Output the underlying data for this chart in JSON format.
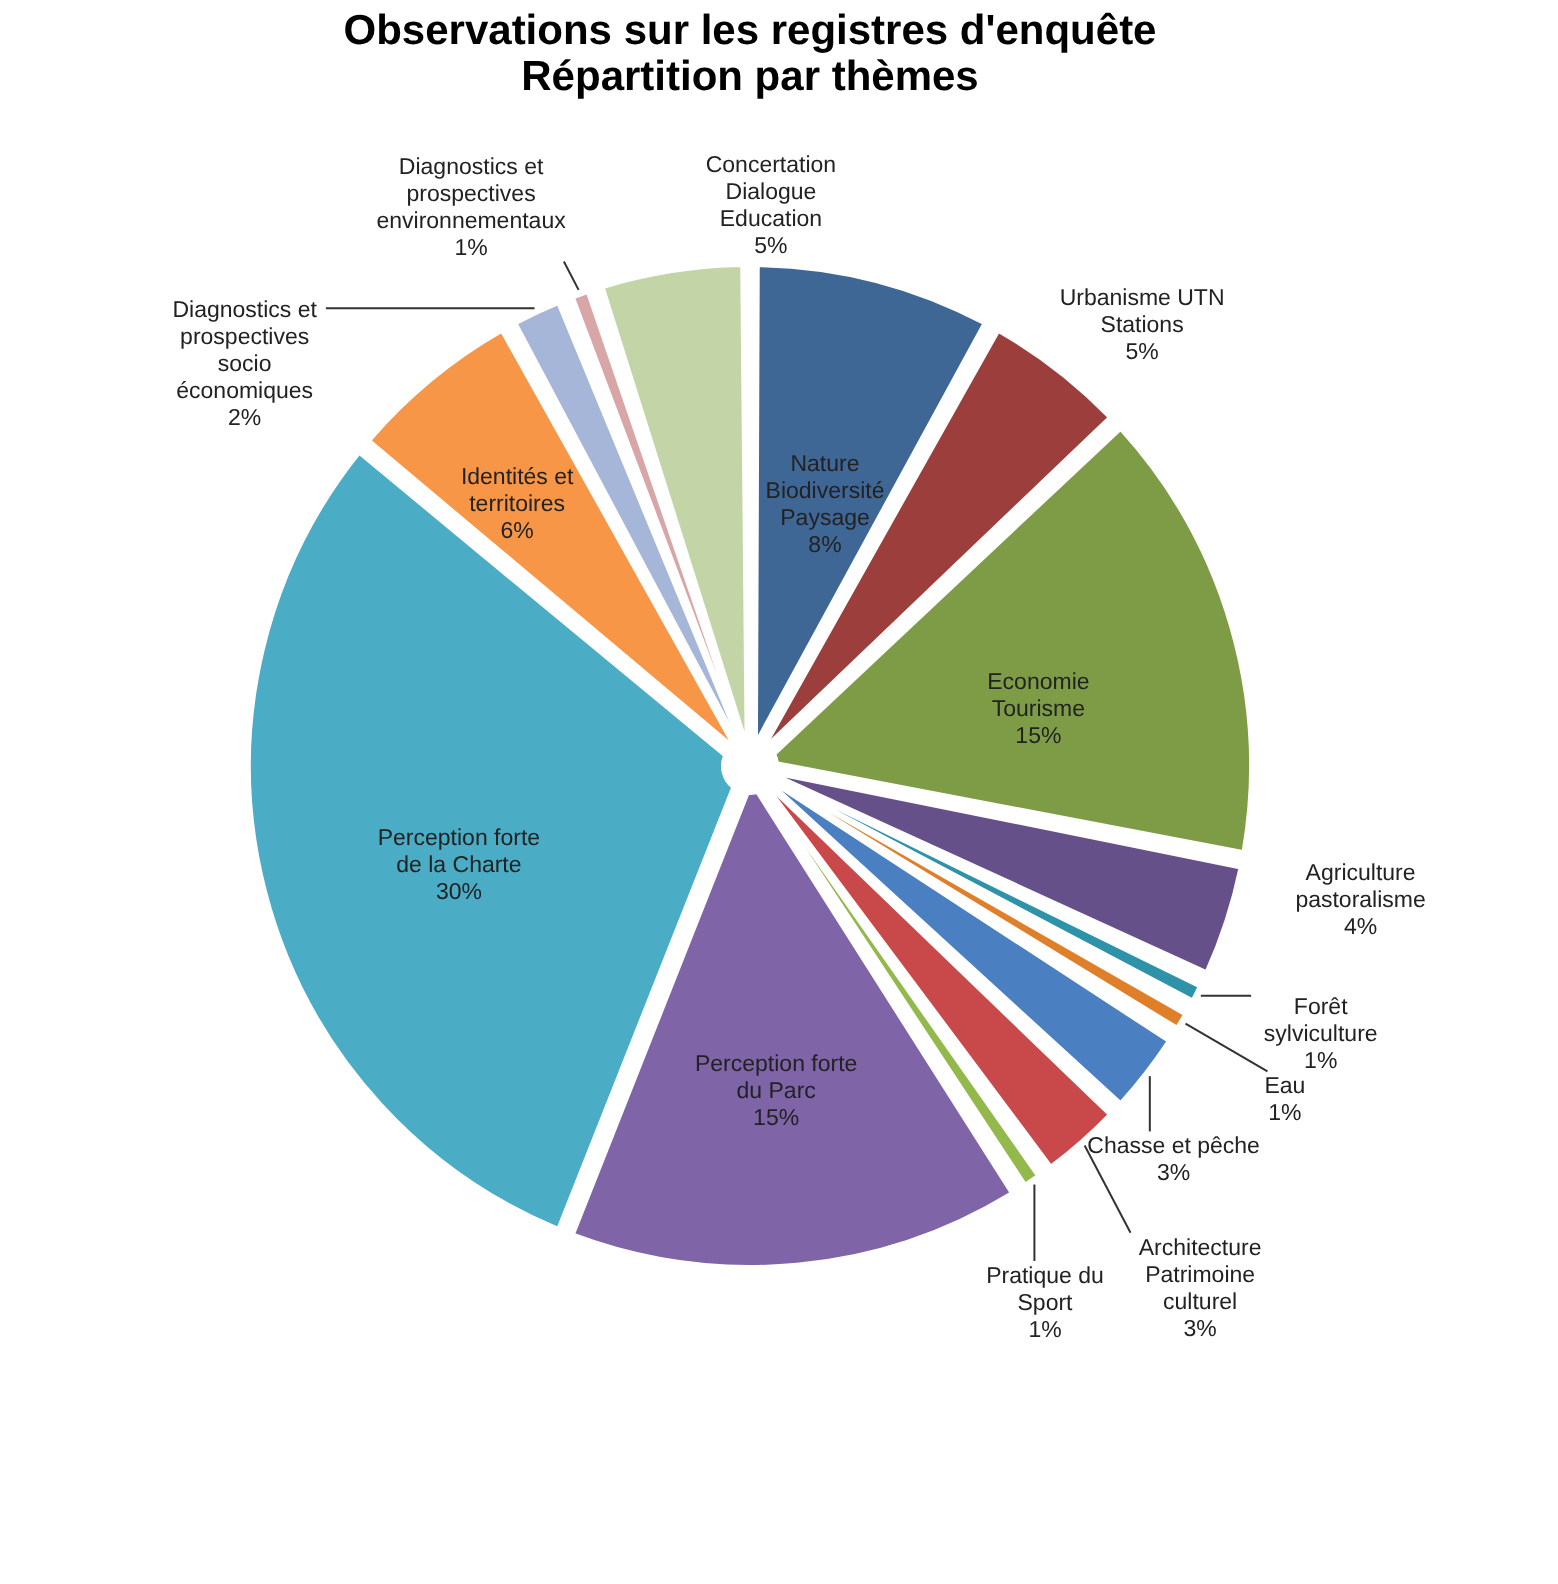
{
  "chart_data": {
    "type": "pie",
    "title": [
      "Observations sur les registres  d'enquête",
      "Répartition par thèmes"
    ],
    "categories": [
      "Nature Biodiversité Paysage",
      "Urbanisme UTN Stations",
      "Economie Tourisme",
      "Agriculture pastoralisme",
      "Forêt sylviculture",
      "Eau",
      "Chasse et pêche",
      "Architecture Patrimoine culturel",
      "Pratique du Sport",
      "Perception forte du Parc",
      "Perception forte de la Charte",
      "Identités et territoires",
      "Diagnostics et prospectives socio économiques",
      "Diagnostics et prospectives environnementaux",
      "Concertation Dialogue Education"
    ],
    "values": [
      8,
      5,
      15,
      4,
      1,
      1,
      3,
      3,
      1,
      15,
      30,
      6,
      2,
      1,
      5
    ],
    "value_labels": [
      "8%",
      "5%",
      "15%",
      "4%",
      "1%",
      "1%",
      "3%",
      "3%",
      "1%",
      "15%",
      "30%",
      "6%",
      "2%",
      "1%",
      "5%"
    ],
    "colors": [
      "#3e6796",
      "#9c3f3c",
      "#7e9c46",
      "#66508a",
      "#2e93a8",
      "#e07f2a",
      "#4a7fc1",
      "#c9484a",
      "#93b84c",
      "#7f64a8",
      "#4bacc6",
      "#f79646",
      "#a5b6d8",
      "#d9a6a7",
      "#c3d5a7"
    ],
    "legend": false
  }
}
